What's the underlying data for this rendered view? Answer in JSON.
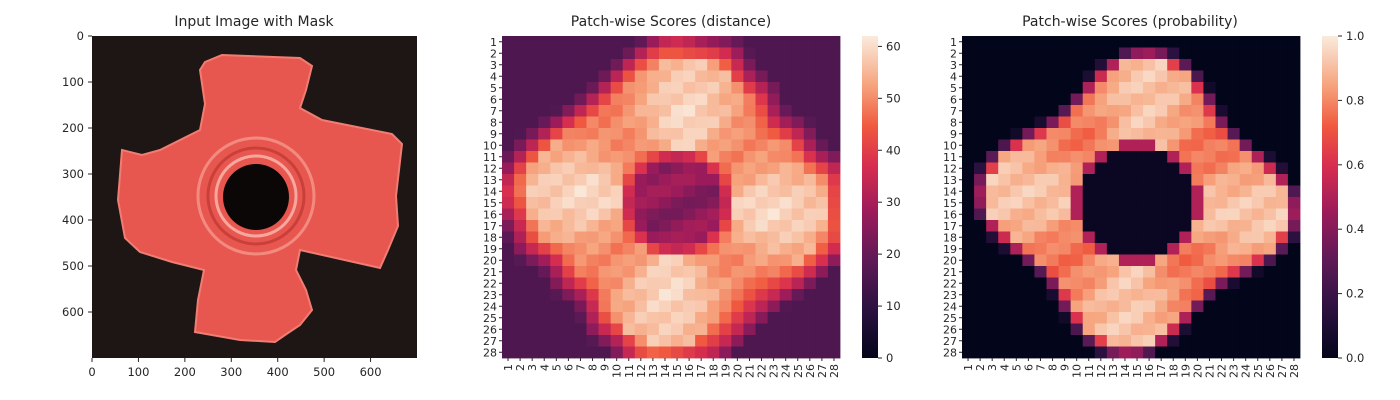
{
  "chart_data": [
    {
      "type": "image",
      "title": "Input Image with Mask",
      "xticks": [
        0,
        100,
        200,
        300,
        400,
        500,
        600
      ],
      "yticks": [
        0,
        100,
        200,
        300,
        400,
        500,
        600
      ],
      "xlim": [
        0,
        700
      ],
      "ylim": [
        0,
        700
      ],
      "colors": {
        "background": "#1e1614",
        "mask": "#e8574f",
        "hole": "#0b0707"
      }
    },
    {
      "type": "heatmap",
      "title": "Patch-wise Scores (distance)",
      "xticks": [
        "1",
        "2",
        "3",
        "4",
        "5",
        "6",
        "7",
        "8",
        "9",
        "10",
        "11",
        "12",
        "13",
        "14",
        "15",
        "16",
        "17",
        "18",
        "19",
        "20",
        "21",
        "22",
        "23",
        "24",
        "25",
        "26",
        "27",
        "28"
      ],
      "yticks": [
        "1",
        "2",
        "3",
        "4",
        "5",
        "6",
        "7",
        "8",
        "9",
        "10",
        "11",
        "12",
        "13",
        "14",
        "15",
        "16",
        "17",
        "18",
        "19",
        "20",
        "21",
        "22",
        "23",
        "24",
        "25",
        "26",
        "27",
        "28"
      ],
      "colorbar": {
        "min": 0,
        "max": 62,
        "ticks": [
          0,
          10,
          20,
          30,
          40,
          50,
          60
        ]
      },
      "colormap": "rocket",
      "description_params": {
        "peak_rows": [
          11,
          12,
          13
        ],
        "low_center": [
          14,
          15
        ]
      }
    },
    {
      "type": "heatmap",
      "title": "Patch-wise Scores (probability)",
      "xticks": [
        "1",
        "2",
        "3",
        "4",
        "5",
        "6",
        "7",
        "8",
        "9",
        "10",
        "11",
        "12",
        "13",
        "14",
        "15",
        "16",
        "17",
        "18",
        "19",
        "20",
        "21",
        "22",
        "23",
        "24",
        "25",
        "26",
        "27",
        "28"
      ],
      "yticks": [
        "1",
        "2",
        "3",
        "4",
        "5",
        "6",
        "7",
        "8",
        "9",
        "10",
        "11",
        "12",
        "13",
        "14",
        "15",
        "16",
        "17",
        "18",
        "19",
        "20",
        "21",
        "22",
        "23",
        "24",
        "25",
        "26",
        "27",
        "28"
      ],
      "colorbar": {
        "min": 0.0,
        "max": 1.0,
        "ticks": [
          "0.0",
          "0.2",
          "0.4",
          "0.6",
          "0.8",
          "1.0"
        ]
      },
      "colormap": "rocket"
    }
  ]
}
